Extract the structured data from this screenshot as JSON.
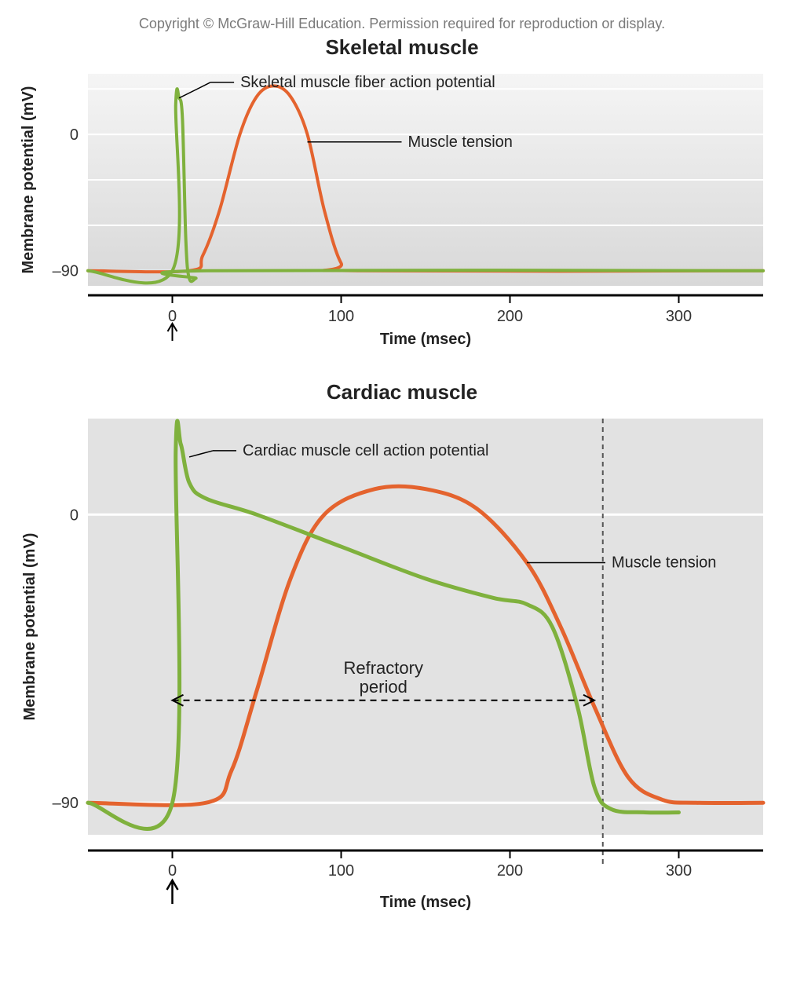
{
  "copyright": "Copyright © McGraw-Hill Education. Permission required for reproduction or display.",
  "panels": {
    "skeletal": {
      "title": "Skeletal muscle",
      "ylabel": "Membrane potential (mV)",
      "xlabel": "Time (msec)",
      "xlim": [
        -50,
        350
      ],
      "ylim": [
        -100,
        40
      ],
      "xticks": [
        0,
        100,
        200,
        300
      ],
      "yticks": [
        0,
        -90
      ],
      "ytick_labels": [
        "0",
        "–90"
      ],
      "plot_bg_top": "#f5f5f5",
      "plot_bg_bottom": "#d8d8d8",
      "gridline_color": "#ffffff",
      "axis_color": "#000000",
      "label_fontsize": 20,
      "tick_fontsize": 20,
      "title_fontsize": 26,
      "line_width": 4,
      "annotations": {
        "ap_label": "Skeletal muscle fiber action potential",
        "tension_label": "Muscle tension"
      },
      "series": {
        "action_potential": {
          "color": "#7fb13d",
          "points": [
            {
              "x": -50,
              "y": -90
            },
            {
              "x": 0,
              "y": -90
            },
            {
              "x": 2,
              "y": 20
            },
            {
              "x": 4,
              "y": 24
            },
            {
              "x": 6,
              "y": 10
            },
            {
              "x": 8,
              "y": -70
            },
            {
              "x": 10,
              "y": -95
            },
            {
              "x": 14,
              "y": -95
            },
            {
              "x": 20,
              "y": -90
            },
            {
              "x": 350,
              "y": -90
            }
          ]
        },
        "tension": {
          "color": "#e4632e",
          "points": [
            {
              "x": -50,
              "y": -90
            },
            {
              "x": 10,
              "y": -90
            },
            {
              "x": 18,
              "y": -80
            },
            {
              "x": 28,
              "y": -50
            },
            {
              "x": 40,
              "y": 0
            },
            {
              "x": 50,
              "y": 25
            },
            {
              "x": 60,
              "y": 32
            },
            {
              "x": 70,
              "y": 25
            },
            {
              "x": 80,
              "y": 0
            },
            {
              "x": 90,
              "y": -50
            },
            {
              "x": 100,
              "y": -85
            },
            {
              "x": 110,
              "y": -90
            },
            {
              "x": 350,
              "y": -90
            }
          ]
        }
      }
    },
    "cardiac": {
      "title": "Cardiac muscle",
      "ylabel": "Membrane potential (mV)",
      "xlabel": "Time (msec)",
      "xlim": [
        -50,
        350
      ],
      "ylim": [
        -100,
        30
      ],
      "xticks": [
        0,
        100,
        200,
        300
      ],
      "yticks": [
        0,
        -90
      ],
      "ytick_labels": [
        "0",
        "–90"
      ],
      "plot_bg": "#e2e2e2",
      "gridline_color": "#ffffff",
      "axis_color": "#000000",
      "label_fontsize": 20,
      "tick_fontsize": 20,
      "title_fontsize": 26,
      "line_width": 5,
      "refractory": {
        "label": "Refractory period",
        "x_start": 0,
        "x_end": 250,
        "y": -58,
        "dash": "8 6"
      },
      "vline": {
        "x": 255,
        "dash": "6 5",
        "color": "#555555"
      },
      "annotations": {
        "ap_label": "Cardiac muscle cell action potential",
        "tension_label": "Muscle tension"
      },
      "series": {
        "action_potential": {
          "color": "#7fb13d",
          "points": [
            {
              "x": -50,
              "y": -90
            },
            {
              "x": 0,
              "y": -90
            },
            {
              "x": 2,
              "y": 20
            },
            {
              "x": 5,
              "y": 22
            },
            {
              "x": 10,
              "y": 10
            },
            {
              "x": 20,
              "y": 5
            },
            {
              "x": 50,
              "y": 0
            },
            {
              "x": 100,
              "y": -10
            },
            {
              "x": 150,
              "y": -20
            },
            {
              "x": 190,
              "y": -26
            },
            {
              "x": 210,
              "y": -28
            },
            {
              "x": 225,
              "y": -35
            },
            {
              "x": 240,
              "y": -60
            },
            {
              "x": 250,
              "y": -85
            },
            {
              "x": 260,
              "y": -92
            },
            {
              "x": 280,
              "y": -93
            },
            {
              "x": 300,
              "y": -93
            }
          ]
        },
        "tension": {
          "color": "#e4632e",
          "points": [
            {
              "x": -50,
              "y": -90
            },
            {
              "x": 20,
              "y": -90
            },
            {
              "x": 35,
              "y": -80
            },
            {
              "x": 50,
              "y": -55
            },
            {
              "x": 70,
              "y": -20
            },
            {
              "x": 90,
              "y": 0
            },
            {
              "x": 120,
              "y": 8
            },
            {
              "x": 150,
              "y": 8
            },
            {
              "x": 180,
              "y": 2
            },
            {
              "x": 210,
              "y": -15
            },
            {
              "x": 230,
              "y": -35
            },
            {
              "x": 250,
              "y": -60
            },
            {
              "x": 270,
              "y": -82
            },
            {
              "x": 290,
              "y": -89
            },
            {
              "x": 310,
              "y": -90
            },
            {
              "x": 350,
              "y": -90
            }
          ]
        }
      }
    }
  }
}
